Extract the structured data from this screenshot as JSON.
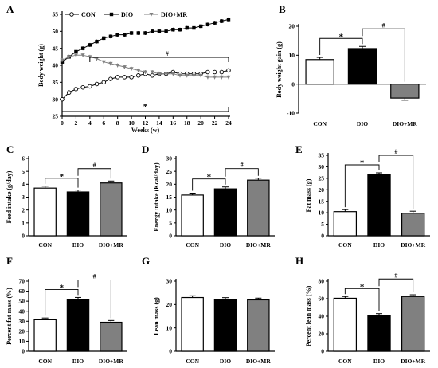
{
  "chart_data": [
    {
      "panel": "A",
      "type": "line",
      "xlabel": "Weeks (w)",
      "ylabel": "Body weight (g)",
      "xlim": [
        0,
        24
      ],
      "ylim": [
        25,
        55
      ],
      "xticks": [
        0,
        2,
        4,
        6,
        8,
        10,
        12,
        14,
        16,
        18,
        20,
        22,
        24
      ],
      "yticks": [
        25,
        30,
        35,
        40,
        45,
        50,
        55
      ],
      "legend": "top-left",
      "x": [
        0,
        1,
        2,
        3,
        4,
        5,
        6,
        7,
        8,
        9,
        10,
        11,
        12,
        13,
        14,
        15,
        16,
        17,
        18,
        19,
        20,
        21,
        22,
        23,
        24
      ],
      "series": [
        {
          "name": "CON",
          "marker": "circle-open",
          "color": "#000000",
          "values": [
            30.0,
            32.0,
            33.0,
            33.5,
            33.8,
            34.5,
            35.0,
            36.0,
            36.5,
            36.5,
            36.5,
            37.0,
            37.5,
            37.0,
            37.5,
            37.5,
            38.0,
            37.5,
            37.5,
            37.5,
            37.5,
            38.0,
            38.0,
            38.0,
            38.5
          ]
        },
        {
          "name": "DIO",
          "marker": "square-filled",
          "color": "#000000",
          "values": [
            41.0,
            42.5,
            44.0,
            45.0,
            46.0,
            47.0,
            48.0,
            48.5,
            49.0,
            49.0,
            49.5,
            49.5,
            49.5,
            50.0,
            50.0,
            50.0,
            50.5,
            50.5,
            51.0,
            51.0,
            51.5,
            52.0,
            52.5,
            53.0,
            53.5
          ]
        },
        {
          "name": "DIO+MR",
          "marker": "triangle-filled",
          "color": "#808080",
          "values": [
            41.5,
            42.5,
            43.0,
            43.0,
            42.5,
            42.0,
            41.0,
            40.5,
            40.0,
            39.5,
            39.0,
            38.5,
            38.0,
            38.0,
            37.5,
            37.5,
            37.5,
            37.0,
            37.0,
            37.0,
            37.0,
            36.5,
            36.5,
            36.5,
            36.5
          ]
        }
      ],
      "annotations": [
        "#",
        "*"
      ]
    },
    {
      "panel": "B",
      "type": "bar",
      "ylabel": "Body weight gain (g)",
      "categories": [
        "CON",
        "DIO",
        "DIO+MR"
      ],
      "values": [
        8.5,
        12.3,
        -4.8
      ],
      "colors": [
        "#ffffff",
        "#000000",
        "#808080"
      ],
      "ylim": [
        -10,
        20
      ],
      "yticks": [
        -10,
        0,
        10,
        20
      ],
      "annotations": [
        "*",
        "#"
      ]
    },
    {
      "panel": "C",
      "type": "bar",
      "ylabel": "Feed intake (g/day)",
      "categories": [
        "CON",
        "DIO",
        "DIO+MR"
      ],
      "values": [
        3.7,
        3.4,
        4.1
      ],
      "colors": [
        "#ffffff",
        "#000000",
        "#808080"
      ],
      "ylim": [
        0,
        6
      ],
      "yticks": [
        0,
        1,
        2,
        3,
        4,
        5,
        6
      ],
      "annotations": [
        "*",
        "#"
      ]
    },
    {
      "panel": "D",
      "type": "bar",
      "ylabel": "Energy intake (Kcal/day)",
      "categories": [
        "CON",
        "DIO",
        "DIO+MR"
      ],
      "values": [
        15.8,
        18.2,
        21.6
      ],
      "colors": [
        "#ffffff",
        "#000000",
        "#808080"
      ],
      "ylim": [
        0,
        30
      ],
      "yticks": [
        0,
        5,
        10,
        15,
        20,
        25,
        30
      ],
      "annotations": [
        "*",
        "#"
      ]
    },
    {
      "panel": "E",
      "type": "bar",
      "ylabel": "Fat mass (g)",
      "categories": [
        "CON",
        "DIO",
        "DIO+MR"
      ],
      "values": [
        10.5,
        26.5,
        9.8
      ],
      "colors": [
        "#ffffff",
        "#000000",
        "#808080"
      ],
      "ylim": [
        0,
        35
      ],
      "yticks": [
        0,
        5,
        10,
        15,
        20,
        25,
        30,
        35
      ],
      "annotations": [
        "*",
        "#"
      ]
    },
    {
      "panel": "F",
      "type": "bar",
      "ylabel": "Percent fat mass (%)",
      "categories": [
        "CON",
        "DIO",
        "DIO+MR"
      ],
      "values": [
        31.5,
        52.0,
        29.0
      ],
      "colors": [
        "#ffffff",
        "#000000",
        "#808080"
      ],
      "ylim": [
        0,
        70
      ],
      "yticks": [
        0,
        10,
        20,
        30,
        40,
        50,
        60,
        70
      ],
      "annotations": [
        "*",
        "#"
      ]
    },
    {
      "panel": "G",
      "type": "bar",
      "ylabel": "Lean mass (g)",
      "categories": [
        "CON",
        "DIO",
        "DIO+MR"
      ],
      "values": [
        23.0,
        22.2,
        22.0
      ],
      "colors": [
        "#ffffff",
        "#000000",
        "#808080"
      ],
      "ylim": [
        0,
        30
      ],
      "yticks": [
        0,
        10,
        20,
        30
      ],
      "annotations": []
    },
    {
      "panel": "H",
      "type": "bar",
      "ylabel": "Percent lean mass (%)",
      "categories": [
        "CON",
        "DIO",
        "DIO+MR"
      ],
      "values": [
        60.5,
        41.0,
        62.5
      ],
      "colors": [
        "#ffffff",
        "#000000",
        "#808080"
      ],
      "ylim": [
        0,
        80
      ],
      "yticks": [
        0,
        20,
        40,
        60,
        80
      ],
      "annotations": [
        "*",
        "#"
      ]
    }
  ]
}
